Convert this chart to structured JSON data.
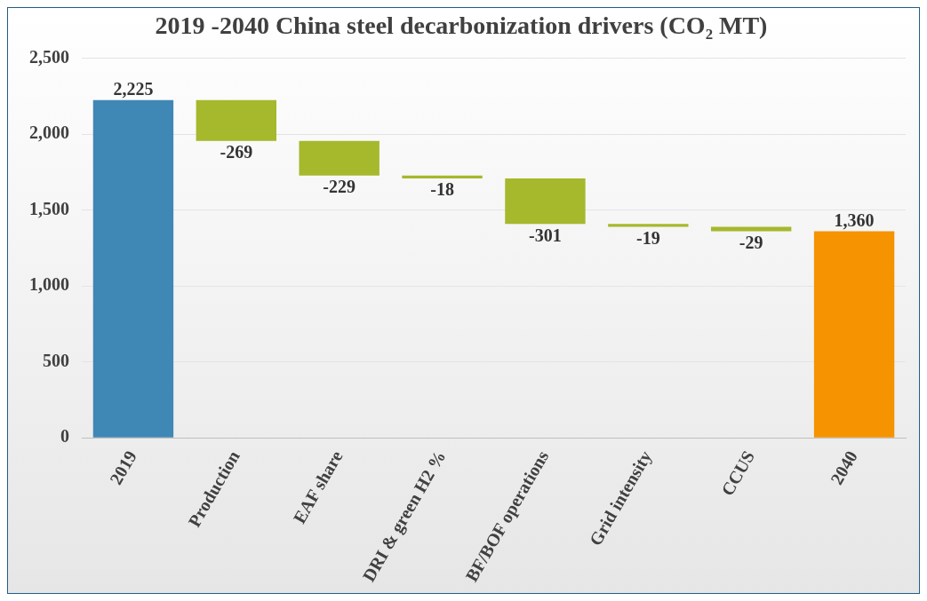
{
  "chart_data": {
    "type": "bar",
    "title": "2019 -2040 China steel decarbonization drivers (CO₂ MT)",
    "categories": [
      "2019",
      "Production",
      "EAF share",
      "DRI & green H2 %",
      "BF/BOF operations",
      "Grid intensity",
      "CCUS",
      "2040"
    ],
    "values": [
      2225,
      -269,
      -229,
      -18,
      -301,
      -19,
      -29,
      1360
    ],
    "base": [
      0,
      2225,
      1956,
      1727,
      1709,
      1408,
      1389,
      0
    ],
    "colors": [
      "#3f87b5",
      "#a6b82c",
      "#a6b82c",
      "#a6b82c",
      "#a6b82c",
      "#a6b82c",
      "#a6b82c",
      "#f59300"
    ],
    "value_labels": [
      "2,225",
      "-269",
      "-229",
      "-18",
      "-301",
      "-19",
      "-29",
      "1,360"
    ],
    "ylim": [
      0,
      2500
    ],
    "yticks": [
      {
        "value": 0,
        "label": "0"
      },
      {
        "value": 500,
        "label": "500"
      },
      {
        "value": 1000,
        "label": "1,000"
      },
      {
        "value": 1500,
        "label": "1,500"
      },
      {
        "value": 2000,
        "label": "2,000"
      },
      {
        "value": 2500,
        "label": "2,500"
      }
    ],
    "grid": "y",
    "legend": false
  }
}
